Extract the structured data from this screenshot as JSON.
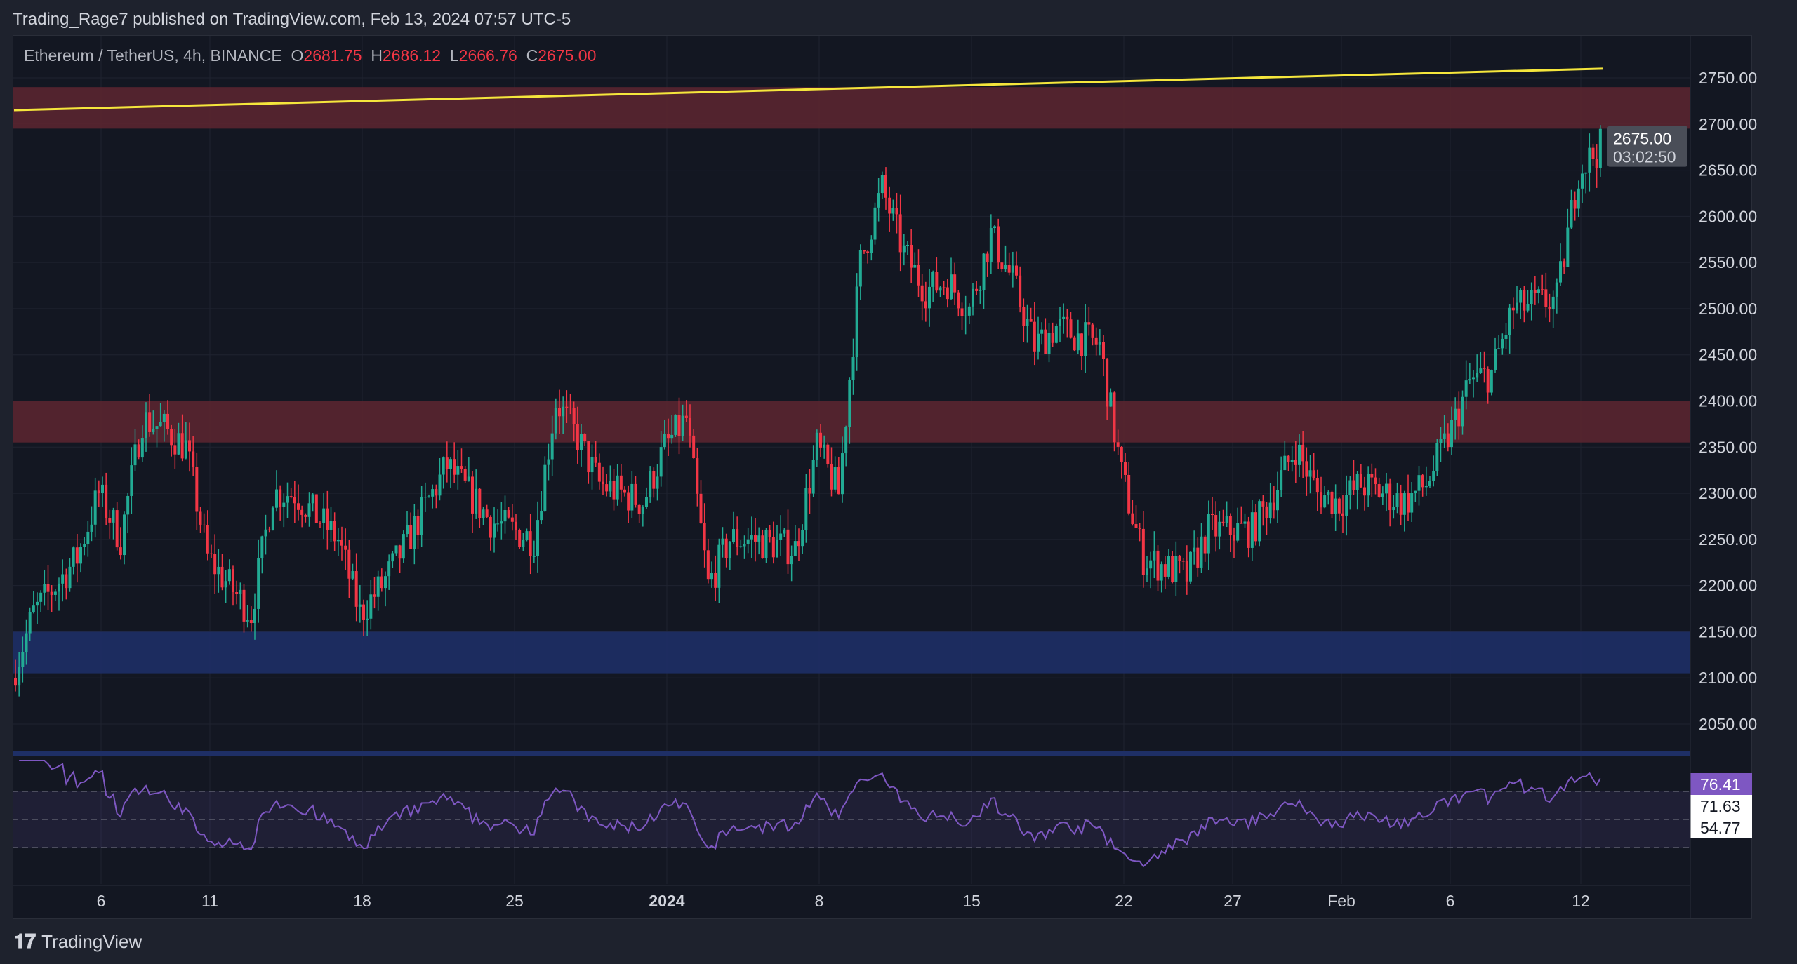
{
  "header": {
    "published": "Trading_Rage7 published on TradingView.com, Feb 13, 2024 07:57 UTC-5"
  },
  "legend": {
    "symbol": "Ethereum / TetherUS, 4h, BINANCE",
    "o_label": "O",
    "o": "2681.75",
    "h_label": "H",
    "h": "2686.12",
    "l_label": "L",
    "l": "2666.76",
    "c_label": "C",
    "c": "2675.00"
  },
  "footer": {
    "brand": "TradingView"
  },
  "colors": {
    "up": "#22ab94",
    "down": "#f23645",
    "zone_red": "#5a2530",
    "zone_blue": "#1e2f66",
    "trendline": "#f5e63c",
    "rsi": "#7e57c2"
  },
  "chart_data": {
    "type": "candlestick",
    "title": "Ethereum / TetherUS, 4h, BINANCE",
    "ylim": [
      2000,
      2775
    ],
    "yticks": [
      "2750.00",
      "2700.00",
      "2650.00",
      "2600.00",
      "2550.00",
      "2500.00",
      "2450.00",
      "2400.00",
      "2350.00",
      "2300.00",
      "2250.00",
      "2200.00",
      "2150.00",
      "2100.00",
      "2050.00"
    ],
    "xticks": [
      {
        "label": "6",
        "day": 4
      },
      {
        "label": "11",
        "day": 9
      },
      {
        "label": "18",
        "day": 16
      },
      {
        "label": "25",
        "day": 23
      },
      {
        "label": "2024",
        "day": 30
      },
      {
        "label": "8",
        "day": 37
      },
      {
        "label": "15",
        "day": 44
      },
      {
        "label": "22",
        "day": 51
      },
      {
        "label": "27",
        "day": 56
      },
      {
        "label": "Feb",
        "day": 61
      },
      {
        "label": "6",
        "day": 66
      },
      {
        "label": "12",
        "day": 72
      }
    ],
    "close_waypoints_by_day": [
      [
        0,
        2100
      ],
      [
        1,
        2170
      ],
      [
        3,
        2230
      ],
      [
        4,
        2300
      ],
      [
        5,
        2250
      ],
      [
        6,
        2380
      ],
      [
        7,
        2370
      ],
      [
        8,
        2350
      ],
      [
        9,
        2230
      ],
      [
        10,
        2200
      ],
      [
        11,
        2170
      ],
      [
        12,
        2300
      ],
      [
        13,
        2300
      ],
      [
        15,
        2250
      ],
      [
        16,
        2170
      ],
      [
        17,
        2200
      ],
      [
        18,
        2240
      ],
      [
        20,
        2330
      ],
      [
        21,
        2300
      ],
      [
        22,
        2270
      ],
      [
        24,
        2250
      ],
      [
        25,
        2400
      ],
      [
        26,
        2360
      ],
      [
        27,
        2310
      ],
      [
        29,
        2290
      ],
      [
        30,
        2350
      ],
      [
        31,
        2380
      ],
      [
        32,
        2200
      ],
      [
        33,
        2250
      ],
      [
        34,
        2250
      ],
      [
        36,
        2240
      ],
      [
        37,
        2350
      ],
      [
        38,
        2300
      ],
      [
        39,
        2550
      ],
      [
        40,
        2630
      ],
      [
        41,
        2560
      ],
      [
        42,
        2520
      ],
      [
        43,
        2530
      ],
      [
        44,
        2500
      ],
      [
        45,
        2580
      ],
      [
        46,
        2530
      ],
      [
        47,
        2460
      ],
      [
        48,
        2480
      ],
      [
        50,
        2460
      ],
      [
        51,
        2320
      ],
      [
        52,
        2230
      ],
      [
        54,
        2210
      ],
      [
        55,
        2260
      ],
      [
        57,
        2260
      ],
      [
        58,
        2300
      ],
      [
        59,
        2350
      ],
      [
        60,
        2300
      ],
      [
        61,
        2290
      ],
      [
        62,
        2310
      ],
      [
        64,
        2290
      ],
      [
        65,
        2310
      ],
      [
        66,
        2360
      ],
      [
        67,
        2420
      ],
      [
        68,
        2430
      ],
      [
        69,
        2500
      ],
      [
        71,
        2510
      ],
      [
        72,
        2650
      ],
      [
        73,
        2675
      ]
    ],
    "zones": [
      {
        "kind": "resistance",
        "from": 2695,
        "to": 2740
      },
      {
        "kind": "resistance",
        "from": 2355,
        "to": 2400
      },
      {
        "kind": "support",
        "from": 2105,
        "to": 2150
      }
    ],
    "trendline": [
      {
        "day": 0,
        "price": 2715
      },
      {
        "day": 73,
        "price": 2760
      }
    ],
    "last_price": {
      "price": "2675.00",
      "countdown": "03:02:50"
    },
    "rsi": {
      "values": [
        "76.41",
        "71.63",
        "54.77"
      ],
      "levels": [
        70,
        50,
        30
      ]
    }
  }
}
